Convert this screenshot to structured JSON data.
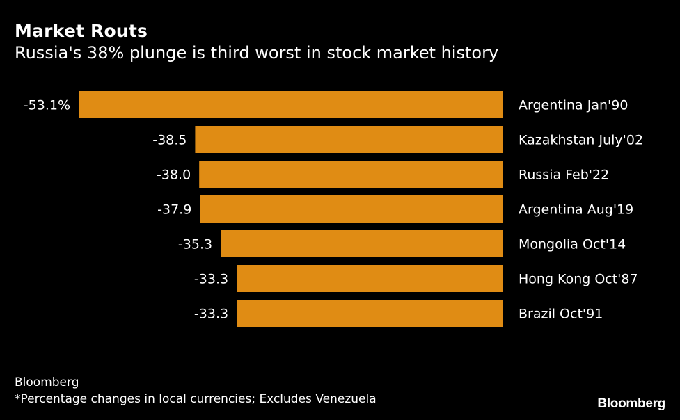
{
  "header": {
    "title": "Market Routs",
    "subtitle": "Russia's 38% plunge is third worst in stock market history"
  },
  "footer": {
    "source": "Bloomberg",
    "note": "*Percentage changes in local currencies; Excludes Venezuela",
    "brand": "Bloomberg"
  },
  "colors": {
    "background": "#000000",
    "bar": "#e08c14",
    "text": "#ffffff"
  },
  "chart_data": {
    "type": "bar",
    "orientation": "horizontal",
    "title": "Market Routs",
    "subtitle": "Russia's 38% plunge is third worst in stock market history",
    "categories": [
      "Argentina Jan'90",
      "Kazakhstan July'02",
      "Russia Feb'22",
      "Argentina Aug'19",
      "Mongolia Oct'14",
      "Hong Kong Oct'87",
      "Brazil Oct'91"
    ],
    "values": [
      -53.1,
      -38.5,
      -38.0,
      -37.9,
      -35.3,
      -33.3,
      -33.3
    ],
    "value_labels": [
      "-53.1%",
      "-38.5",
      "-38.0",
      "-37.9",
      "-35.3",
      "-33.3",
      "-33.3"
    ],
    "unit": "%",
    "xlim": [
      -53.1,
      0
    ],
    "xlabel": "",
    "ylabel": "",
    "grid": false,
    "legend": "none"
  }
}
